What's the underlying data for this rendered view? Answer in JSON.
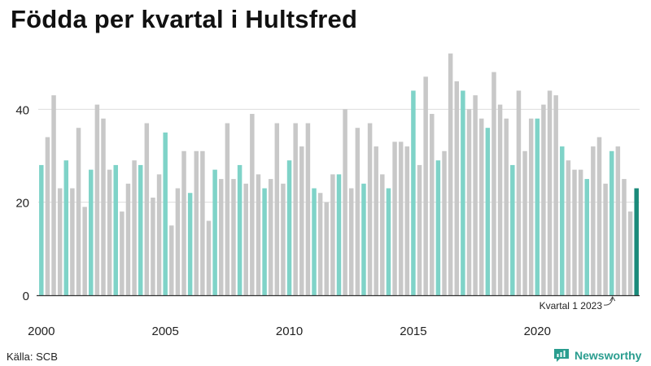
{
  "title": "Födda per kvartal i Hultsfred",
  "source": "Källa: SCB",
  "brand": {
    "name": "Newsworthy",
    "icon": "newsworthy-logo-icon"
  },
  "colors": {
    "q1": "#7fd3c8",
    "other": "#c8c8c8",
    "highlight": "#1a8a7a",
    "axis": "#333333",
    "grid": "#dddddd"
  },
  "chart_data": {
    "type": "bar",
    "title": "Födda per kvartal i Hultsfred",
    "xlabel": "",
    "ylabel": "",
    "ylim": [
      0,
      53
    ],
    "yticks": [
      0,
      20,
      40
    ],
    "xtick_labels": [
      "2000",
      "2005",
      "2010",
      "2015",
      "2020"
    ],
    "xtick_years": [
      2000,
      2005,
      2010,
      2015,
      2020
    ],
    "start_year": 2000,
    "start_quarter": 1,
    "grid": true,
    "annotation": {
      "text": "Kvartal 1 2023",
      "target_index": 92
    },
    "highlight_index": 96,
    "values": [
      28,
      34,
      43,
      23,
      29,
      23,
      36,
      19,
      27,
      41,
      38,
      27,
      28,
      18,
      24,
      29,
      28,
      37,
      21,
      26,
      35,
      15,
      23,
      31,
      22,
      31,
      31,
      16,
      27,
      25,
      37,
      25,
      28,
      24,
      39,
      26,
      23,
      25,
      37,
      24,
      29,
      37,
      32,
      37,
      23,
      22,
      20,
      26,
      26,
      40,
      23,
      36,
      24,
      37,
      32,
      26,
      23,
      33,
      33,
      32,
      44,
      28,
      47,
      39,
      29,
      31,
      52,
      46,
      44,
      40,
      43,
      38,
      36,
      48,
      41,
      38,
      28,
      44,
      31,
      38,
      38,
      41,
      44,
      43,
      32,
      29,
      27,
      27,
      25,
      32,
      34,
      24,
      31,
      32,
      25,
      18,
      23
    ]
  }
}
